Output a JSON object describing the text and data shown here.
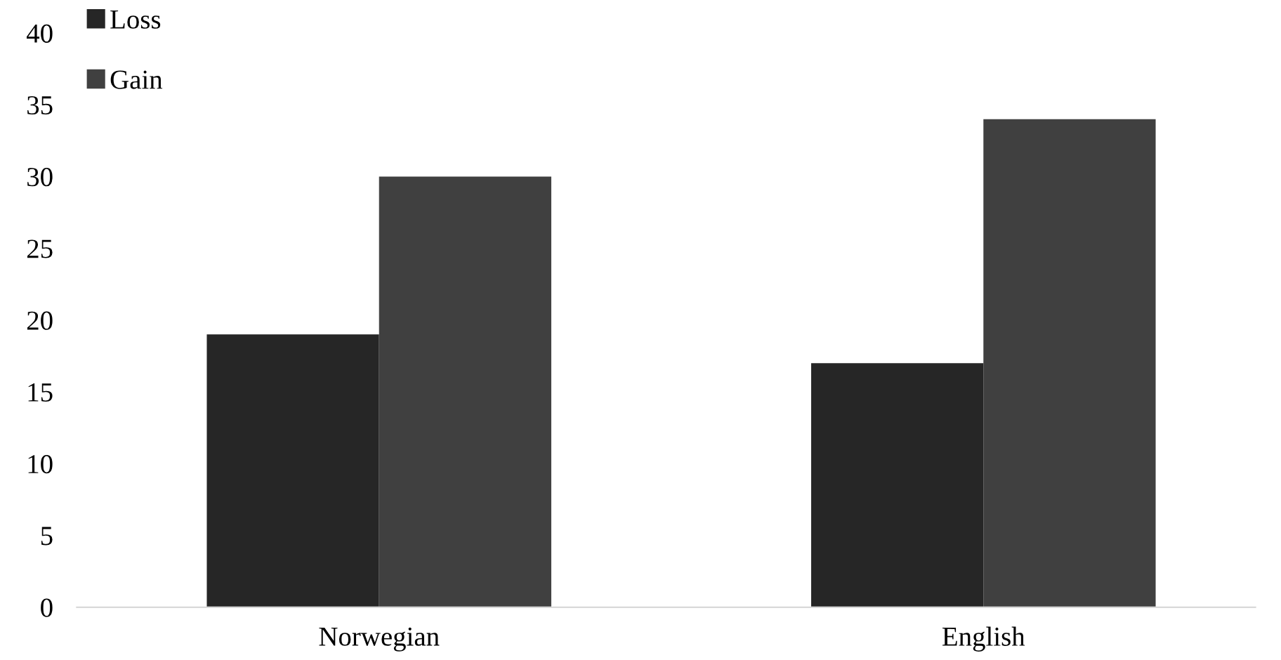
{
  "chart_data": {
    "type": "bar",
    "categories": [
      "Norwegian",
      "English"
    ],
    "series": [
      {
        "name": "Loss",
        "color": "#262626",
        "values": [
          19,
          17
        ]
      },
      {
        "name": "Gain",
        "color": "#404040",
        "values": [
          30,
          34
        ]
      }
    ],
    "ylim": [
      0,
      40
    ],
    "yticks": [
      0,
      5,
      10,
      15,
      20,
      25,
      30,
      35,
      40
    ],
    "grid": false,
    "legend": "top left"
  }
}
